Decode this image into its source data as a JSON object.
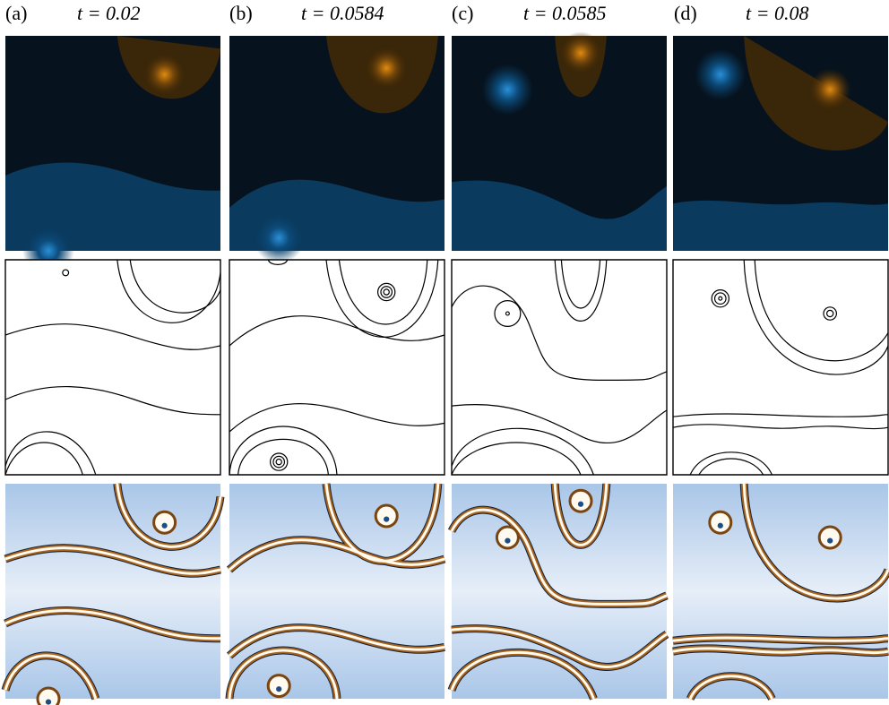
{
  "panels": [
    {
      "label": "(a)",
      "time": "t = 0.02"
    },
    {
      "label": "(b)",
      "time": "t = 0.0584"
    },
    {
      "label": "(c)",
      "time": "t = 0.0585"
    },
    {
      "label": "(d)",
      "time": "t = 0.08"
    }
  ]
}
